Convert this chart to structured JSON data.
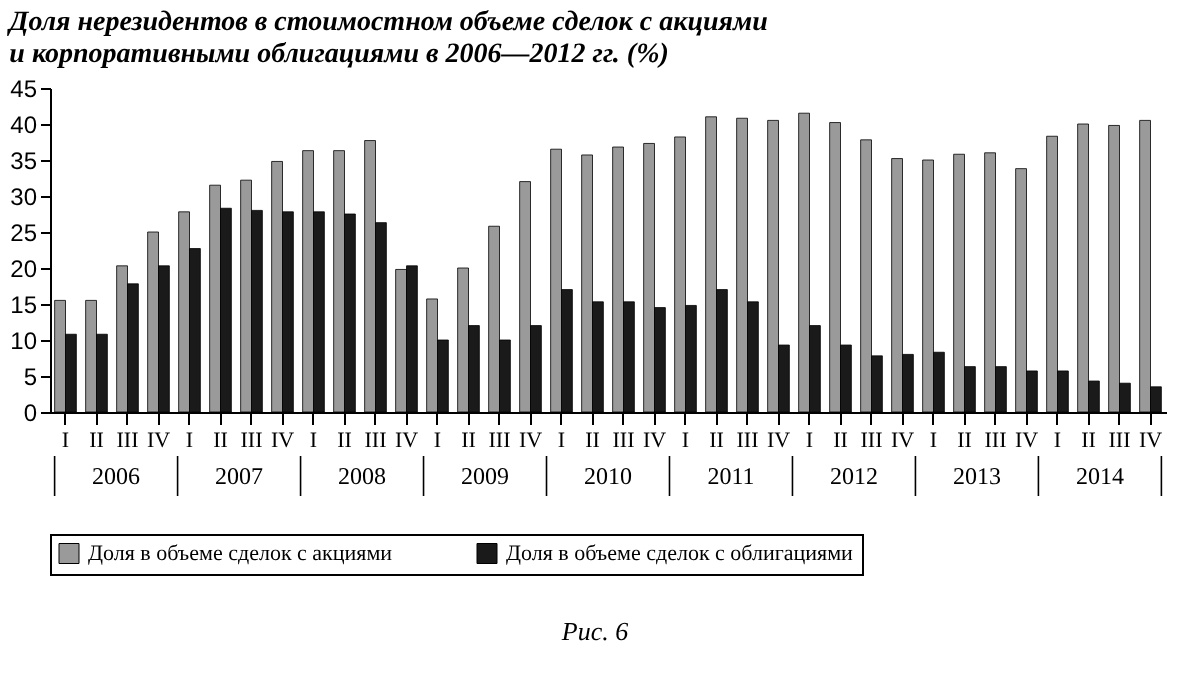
{
  "chart_data": {
    "type": "bar",
    "title": "Доля нерезидентов в стоимостном объеме сделок с акциями\nи корпоративными облигациями в 2006—2012 гг. (%)",
    "categories": [
      "I",
      "II",
      "III",
      "IV",
      "I",
      "II",
      "III",
      "IV",
      "I",
      "II",
      "III",
      "IV",
      "I",
      "II",
      "III",
      "IV",
      "I",
      "II",
      "III",
      "IV",
      "I",
      "II",
      "III",
      "IV",
      "I",
      "II",
      "III",
      "IV",
      "I",
      "II",
      "III",
      "IV",
      "I",
      "II",
      "III",
      "IV"
    ],
    "series": [
      {
        "name": "Доля в объеме сделок с акциями",
        "color": "#9a9a9a",
        "values": [
          15.5,
          15.5,
          20.3,
          25,
          27.8,
          31.5,
          32.2,
          34.8,
          36.3,
          36.3,
          37.7,
          19.8,
          15.7,
          20,
          25.8,
          32,
          36.5,
          35.7,
          36.8,
          37.3,
          38.2,
          41,
          40.8,
          40.5,
          41.5,
          40.2,
          37.8,
          35.2,
          35,
          35.8,
          36,
          33.8,
          38.3,
          40,
          39.8,
          40.5
        ]
      },
      {
        "name": "Доля в объеме сделок с облигациями",
        "color": "#1a1a1a",
        "values": [
          10.8,
          10.8,
          17.8,
          20.3,
          22.7,
          28.3,
          28,
          27.8,
          27.8,
          27.5,
          26.3,
          20.3,
          10,
          12,
          10,
          12,
          17,
          15.3,
          15.3,
          14.5,
          14.8,
          17,
          15.3,
          9.3,
          12,
          9.3,
          7.8,
          8,
          8.3,
          6.3,
          6.3,
          5.7,
          5.7,
          4.3,
          4,
          3.5
        ]
      }
    ],
    "ylim": [
      0,
      45
    ],
    "yticks": [
      0,
      5,
      10,
      15,
      20,
      25,
      30,
      35,
      40,
      45
    ],
    "legend": "bottom",
    "annotations": [
      "2006",
      "2007",
      "2008",
      "2009",
      "2010",
      "2011",
      "2012",
      "2013",
      "2014",
      "Рис. 6"
    ]
  }
}
